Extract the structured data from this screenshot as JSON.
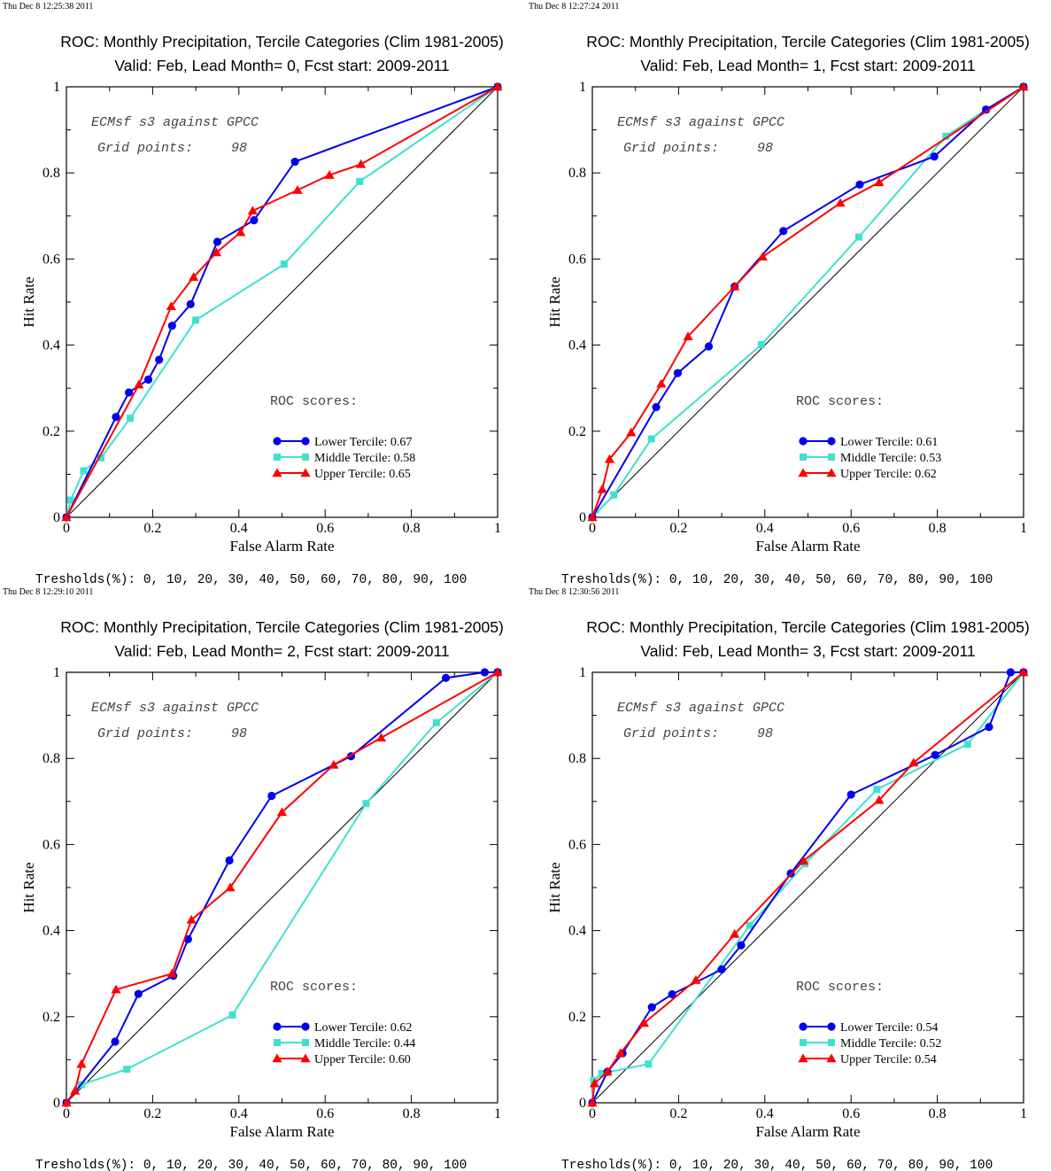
{
  "common": {
    "title": "ROC: Monthly Precipitation, Tercile Categories (Clim 1981-2005)",
    "xlabel": "False Alarm Rate",
    "ylabel": "Hit Rate",
    "annotation_line1": "ECMsf s3 against GPCC",
    "annotation_grid_label": "Grid points:",
    "annotation_grid_value": "98",
    "roc_header": "ROC scores:",
    "thresholds": "Tresholds(%): 0, 10, 20, 30, 40, 50, 60, 70, 80, 90, 100",
    "xticks": [
      "0",
      "0.2",
      "0.4",
      "0.6",
      "0.8",
      "1"
    ],
    "yticks": [
      "0",
      "0.2",
      "0.4",
      "0.6",
      "0.8",
      "1"
    ],
    "colors": {
      "lower": "#0000ee",
      "middle": "#40e0d0",
      "upper": "#ff0000",
      "diagonal": "#000000"
    },
    "markers": {
      "lower": "circle",
      "middle": "square",
      "upper": "triangle"
    }
  },
  "chart_data": [
    {
      "type": "line",
      "timestamp": "Thu Dec  8 12:25:38 2011",
      "subtitle": "Valid: Feb, Lead Month= 0, Fcst start: 2009-2011",
      "xlim": [
        0,
        1
      ],
      "ylim": [
        0,
        1
      ],
      "legend_position": "bottom-right",
      "series": [
        {
          "key": "lower",
          "name": "Lower Tercile: 0.67",
          "x": [
            0,
            0.115,
            0.145,
            0.19,
            0.215,
            0.245,
            0.288,
            0.35,
            0.435,
            0.53,
            1.0
          ],
          "y": [
            0,
            0.233,
            0.29,
            0.32,
            0.366,
            0.445,
            0.495,
            0.64,
            0.69,
            0.826,
            1.0
          ]
        },
        {
          "key": "middle",
          "name": "Middle Tercile: 0.58",
          "x": [
            0,
            0.01,
            0.04,
            0.08,
            0.148,
            0.3,
            0.505,
            0.68,
            1.0
          ],
          "y": [
            0,
            0.04,
            0.108,
            0.138,
            0.23,
            0.458,
            0.588,
            0.78,
            1.0
          ]
        },
        {
          "key": "upper",
          "name": "Upper Tercile: 0.65",
          "x": [
            0,
            0.168,
            0.243,
            0.295,
            0.348,
            0.404,
            0.432,
            0.536,
            0.61,
            0.683,
            1.0
          ],
          "y": [
            0,
            0.308,
            0.49,
            0.558,
            0.615,
            0.662,
            0.712,
            0.76,
            0.795,
            0.82,
            1.0
          ]
        }
      ]
    },
    {
      "type": "line",
      "timestamp": "Thu Dec  8 12:27:24 2011",
      "subtitle": "Valid: Feb, Lead Month= 1, Fcst start: 2009-2011",
      "xlim": [
        0,
        1
      ],
      "ylim": [
        0,
        1
      ],
      "legend_position": "bottom-right",
      "series": [
        {
          "key": "lower",
          "name": "Lower Tercile: 0.61",
          "x": [
            0,
            0.148,
            0.198,
            0.27,
            0.33,
            0.443,
            0.62,
            0.793,
            0.913,
            1.0
          ],
          "y": [
            0,
            0.256,
            0.335,
            0.397,
            0.536,
            0.665,
            0.773,
            0.838,
            0.947,
            1.0
          ]
        },
        {
          "key": "middle",
          "name": "Middle Tercile: 0.53",
          "x": [
            0,
            0.05,
            0.137,
            0.392,
            0.618,
            0.82,
            0.913,
            1.0
          ],
          "y": [
            0,
            0.052,
            0.182,
            0.401,
            0.651,
            0.885,
            0.947,
            1.0
          ]
        },
        {
          "key": "upper",
          "name": "Upper Tercile: 0.62",
          "x": [
            0,
            0.023,
            0.04,
            0.09,
            0.16,
            0.222,
            0.33,
            0.395,
            0.575,
            0.665,
            1.0
          ],
          "y": [
            0,
            0.065,
            0.135,
            0.197,
            0.31,
            0.42,
            0.536,
            0.605,
            0.73,
            0.778,
            1.0
          ]
        }
      ]
    },
    {
      "type": "line",
      "timestamp": "Thu Dec  8 12:29:10 2011",
      "subtitle": "Valid: Feb, Lead Month= 2, Fcst start: 2009-2011",
      "xlim": [
        0,
        1
      ],
      "ylim": [
        0,
        1
      ],
      "legend_position": "bottom-right",
      "series": [
        {
          "key": "lower",
          "name": "Lower Tercile: 0.62",
          "x": [
            0,
            0.113,
            0.167,
            0.248,
            0.282,
            0.378,
            0.476,
            0.66,
            0.88,
            0.97,
            1.0
          ],
          "y": [
            0,
            0.142,
            0.253,
            0.295,
            0.38,
            0.563,
            0.713,
            0.805,
            0.987,
            1.0,
            1.0
          ]
        },
        {
          "key": "middle",
          "name": "Middle Tercile: 0.44",
          "x": [
            0,
            0.035,
            0.14,
            0.385,
            0.695,
            0.858,
            1.0
          ],
          "y": [
            0,
            0.042,
            0.078,
            0.204,
            0.695,
            0.883,
            1.0
          ]
        },
        {
          "key": "upper",
          "name": "Upper Tercile: 0.60",
          "x": [
            0,
            0.02,
            0.035,
            0.115,
            0.245,
            0.29,
            0.38,
            0.5,
            0.62,
            0.73,
            1.0
          ],
          "y": [
            0,
            0.028,
            0.09,
            0.263,
            0.3,
            0.425,
            0.5,
            0.675,
            0.785,
            0.848,
            1.0
          ]
        }
      ]
    },
    {
      "type": "line",
      "timestamp": "Thu Dec  8 12:30:56 2011",
      "subtitle": "Valid: Feb, Lead Month= 3, Fcst start: 2009-2011",
      "xlim": [
        0,
        1
      ],
      "ylim": [
        0,
        1
      ],
      "legend_position": "bottom-right",
      "series": [
        {
          "key": "lower",
          "name": "Lower Tercile: 0.54",
          "x": [
            0,
            0.035,
            0.07,
            0.138,
            0.185,
            0.3,
            0.345,
            0.46,
            0.6,
            0.795,
            0.92,
            0.97,
            1.0
          ],
          "y": [
            0,
            0.072,
            0.115,
            0.222,
            0.252,
            0.31,
            0.366,
            0.533,
            0.716,
            0.808,
            0.873,
            1.0,
            1.0
          ]
        },
        {
          "key": "middle",
          "name": "Middle Tercile: 0.52",
          "x": [
            0,
            0.003,
            0.022,
            0.13,
            0.365,
            0.493,
            0.66,
            0.87,
            1.0
          ],
          "y": [
            0,
            0.052,
            0.068,
            0.09,
            0.412,
            0.555,
            0.728,
            0.833,
            1.0
          ]
        },
        {
          "key": "upper",
          "name": "Upper Tercile: 0.54",
          "x": [
            0,
            0.005,
            0.035,
            0.065,
            0.12,
            0.24,
            0.33,
            0.49,
            0.665,
            0.745,
            1.0
          ],
          "y": [
            0,
            0.045,
            0.072,
            0.115,
            0.185,
            0.285,
            0.392,
            0.562,
            0.703,
            0.79,
            1.0
          ]
        }
      ]
    }
  ]
}
